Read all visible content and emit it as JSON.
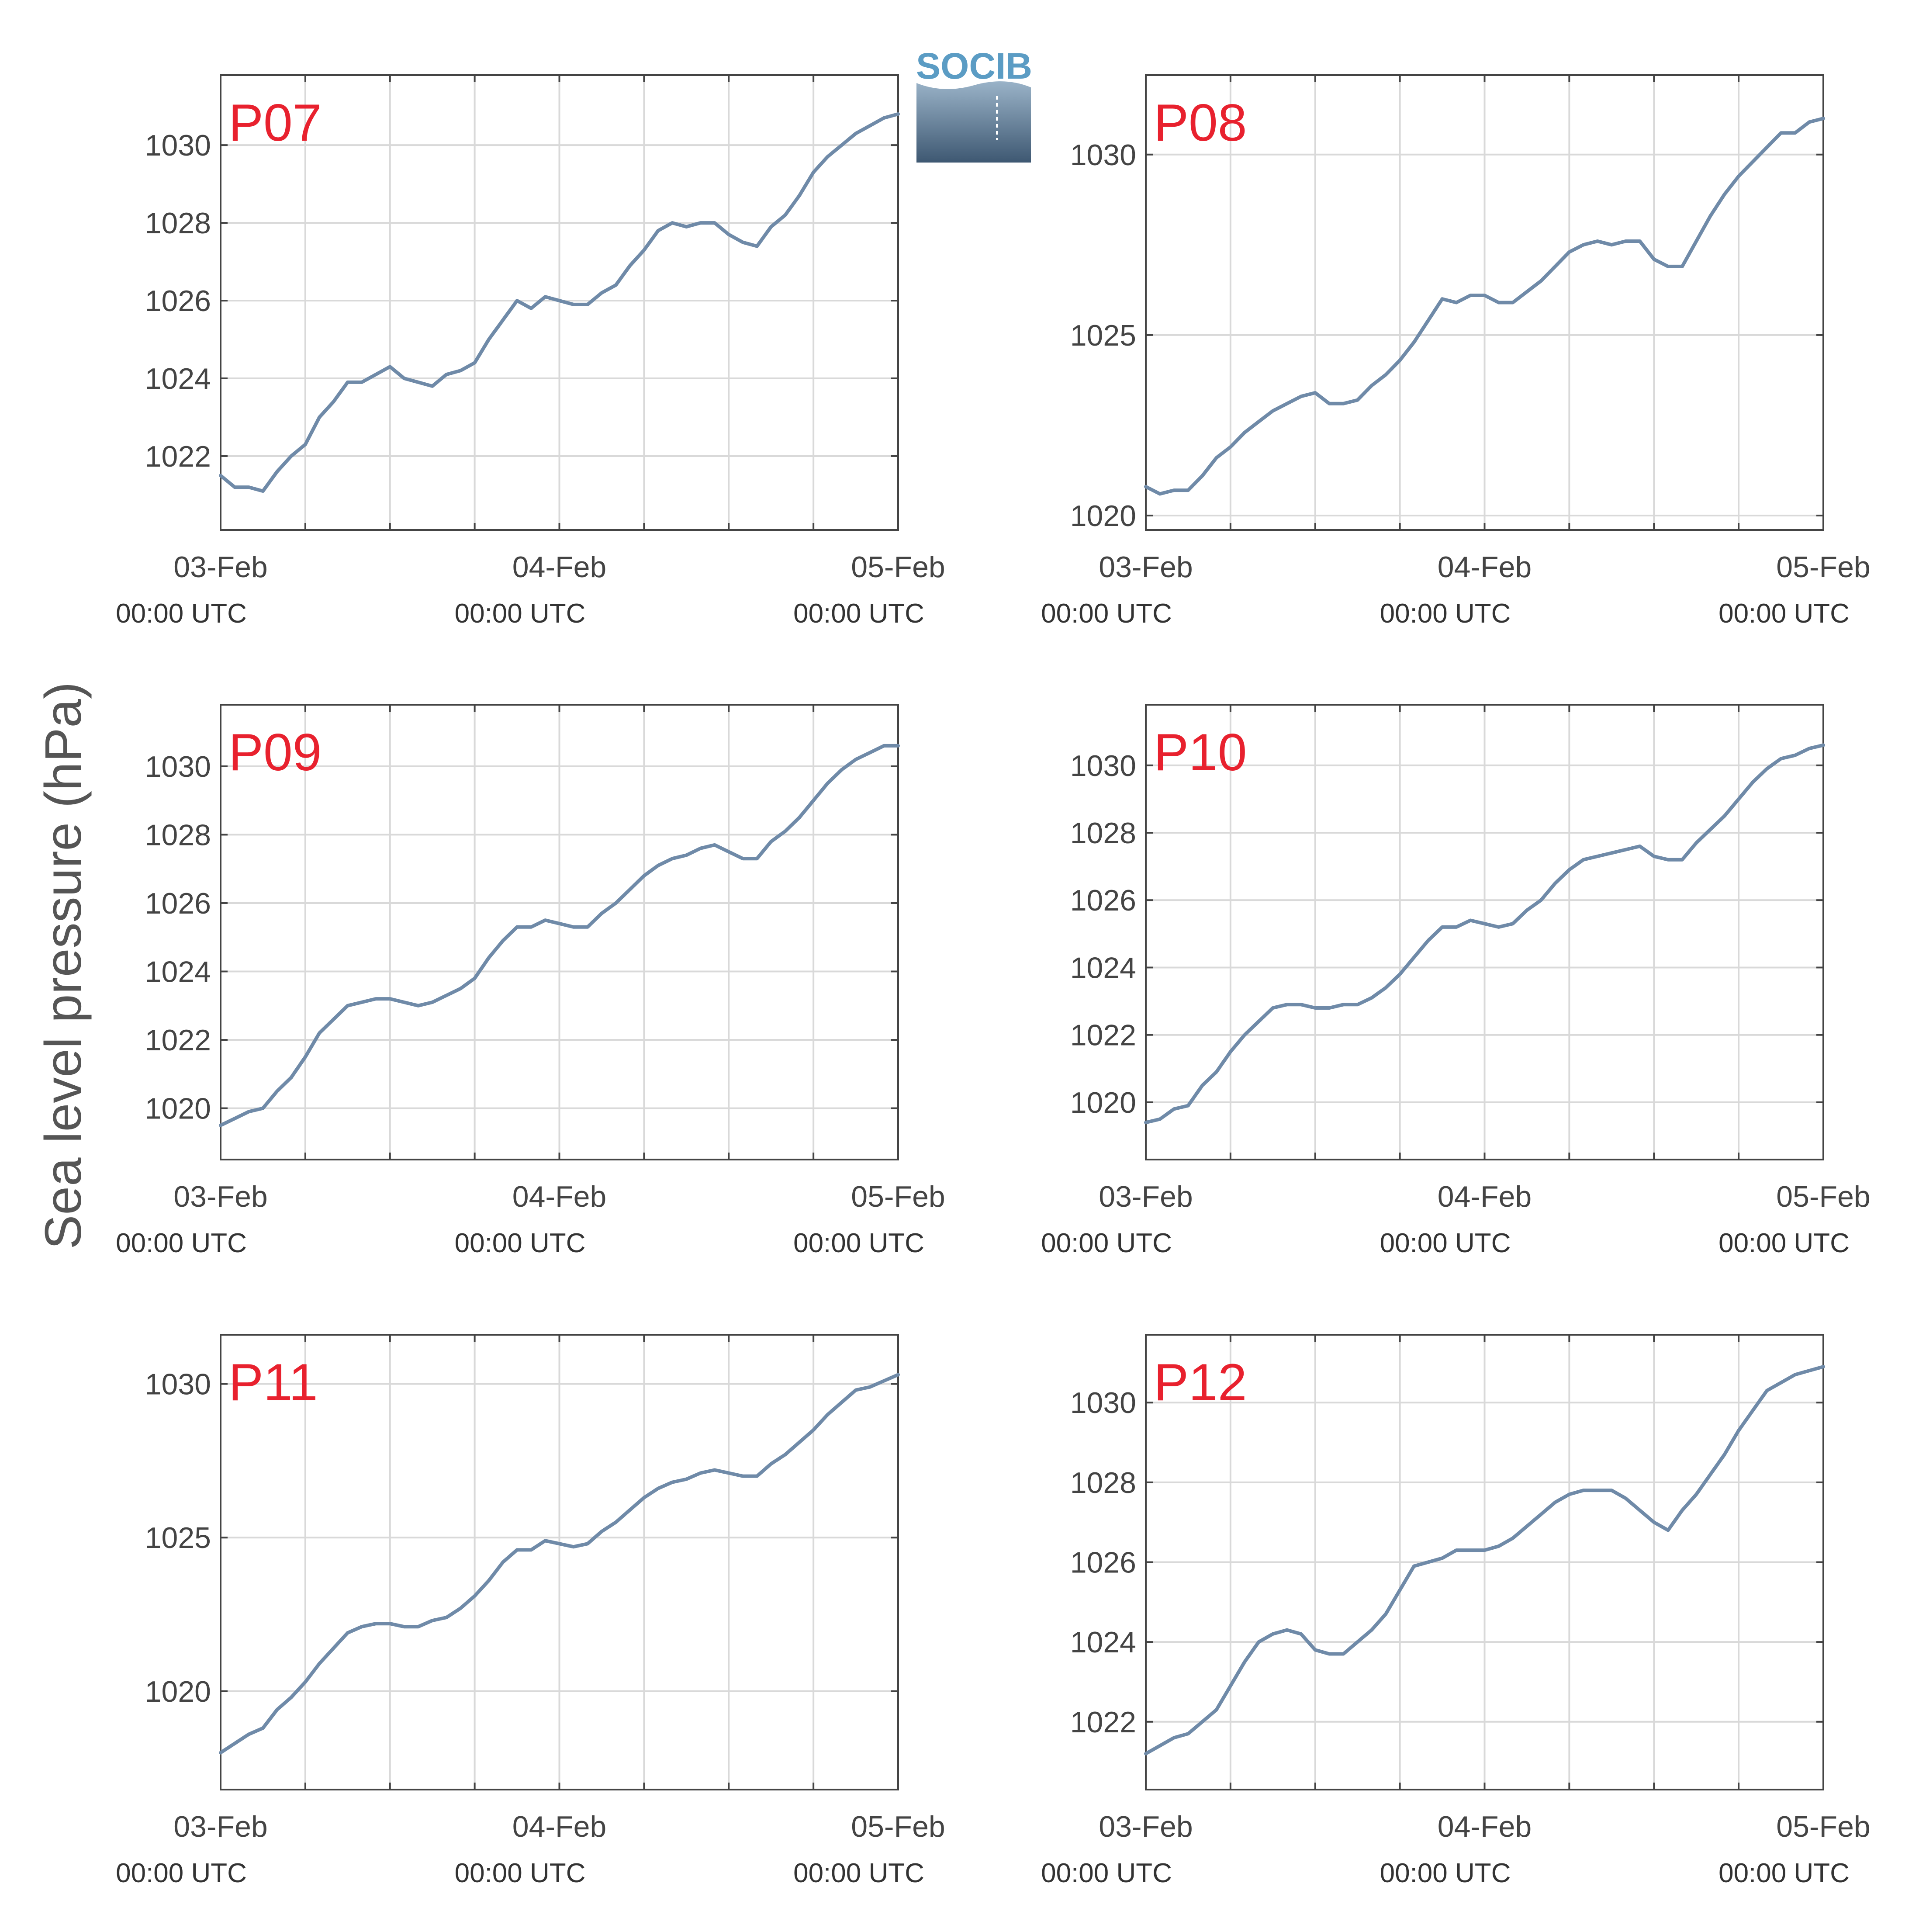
{
  "figure": {
    "ylabel": "Sea level pressure (hPa)",
    "logo_text": "SOCIB",
    "colors": {
      "line": "#6f8aa8",
      "panel_label": "#e8212e",
      "grid": "#d9d9d9",
      "axis": "#444444"
    }
  },
  "chart_data": [
    {
      "type": "line",
      "title": "P07",
      "x_ticks": [
        "03-Feb",
        "04-Feb",
        "05-Feb"
      ],
      "x_tick_sub": [
        "00:00 UTC",
        "00:00 UTC",
        "00:00 UTC"
      ],
      "x_range_hours": [
        0,
        48
      ],
      "ylim": [
        1020.1,
        1031.8
      ],
      "y_ticks": [
        1022,
        1024,
        1026,
        1028,
        1030
      ],
      "grid": true,
      "series": [
        {
          "x": [
            0,
            1,
            2,
            3,
            4,
            5,
            6,
            7,
            8,
            9,
            10,
            11,
            12,
            13,
            14,
            15,
            16,
            17,
            18,
            19,
            20,
            21,
            22,
            23,
            24,
            25,
            26,
            27,
            28,
            29,
            30,
            31,
            32,
            33,
            34,
            35,
            36,
            37,
            38,
            39,
            40,
            41,
            42,
            43,
            44,
            45,
            46,
            47,
            48
          ],
          "y": [
            1021.5,
            1021.2,
            1021.2,
            1021.1,
            1021.6,
            1022.0,
            1022.3,
            1023.0,
            1023.4,
            1023.9,
            1023.9,
            1024.1,
            1024.3,
            1024.0,
            1023.9,
            1023.8,
            1024.1,
            1024.2,
            1024.4,
            1025.0,
            1025.5,
            1026.0,
            1025.8,
            1026.1,
            1026.0,
            1025.9,
            1025.9,
            1026.2,
            1026.4,
            1026.9,
            1027.3,
            1027.8,
            1028.0,
            1027.9,
            1028.0,
            1028.0,
            1027.7,
            1027.5,
            1027.4,
            1027.9,
            1028.2,
            1028.7,
            1029.3,
            1029.7,
            1030.0,
            1030.3,
            1030.5,
            1030.7,
            1030.8
          ]
        }
      ]
    },
    {
      "type": "line",
      "title": "P08",
      "x_ticks": [
        "03-Feb",
        "04-Feb",
        "05-Feb"
      ],
      "x_tick_sub": [
        "00:00 UTC",
        "00:00 UTC",
        "00:00 UTC"
      ],
      "x_range_hours": [
        0,
        48
      ],
      "ylim": [
        1019.6,
        1032.2
      ],
      "y_ticks": [
        1020,
        1025,
        1030
      ],
      "grid": true,
      "series": [
        {
          "x": [
            0,
            1,
            2,
            3,
            4,
            5,
            6,
            7,
            8,
            9,
            10,
            11,
            12,
            13,
            14,
            15,
            16,
            17,
            18,
            19,
            20,
            21,
            22,
            23,
            24,
            25,
            26,
            27,
            28,
            29,
            30,
            31,
            32,
            33,
            34,
            35,
            36,
            37,
            38,
            39,
            40,
            41,
            42,
            43,
            44,
            45,
            46,
            47,
            48
          ],
          "y": [
            1020.8,
            1020.6,
            1020.7,
            1020.7,
            1021.1,
            1021.6,
            1021.9,
            1022.3,
            1022.6,
            1022.9,
            1023.1,
            1023.3,
            1023.4,
            1023.1,
            1023.1,
            1023.2,
            1023.6,
            1023.9,
            1024.3,
            1024.8,
            1025.4,
            1026.0,
            1025.9,
            1026.1,
            1026.1,
            1025.9,
            1025.9,
            1026.2,
            1026.5,
            1026.9,
            1027.3,
            1027.5,
            1027.6,
            1027.5,
            1027.6,
            1027.6,
            1027.1,
            1026.9,
            1026.9,
            1027.6,
            1028.3,
            1028.9,
            1029.4,
            1029.8,
            1030.2,
            1030.6,
            1030.6,
            1030.9,
            1031.0
          ]
        }
      ]
    },
    {
      "type": "line",
      "title": "P09",
      "x_ticks": [
        "03-Feb",
        "04-Feb",
        "05-Feb"
      ],
      "x_tick_sub": [
        "00:00 UTC",
        "00:00 UTC",
        "00:00 UTC"
      ],
      "x_range_hours": [
        0,
        48
      ],
      "ylim": [
        1018.5,
        1031.8
      ],
      "y_ticks": [
        1020,
        1022,
        1024,
        1026,
        1028,
        1030
      ],
      "grid": true,
      "series": [
        {
          "x": [
            0,
            1,
            2,
            3,
            4,
            5,
            6,
            7,
            8,
            9,
            10,
            11,
            12,
            13,
            14,
            15,
            16,
            17,
            18,
            19,
            20,
            21,
            22,
            23,
            24,
            25,
            26,
            27,
            28,
            29,
            30,
            31,
            32,
            33,
            34,
            35,
            36,
            37,
            38,
            39,
            40,
            41,
            42,
            43,
            44,
            45,
            46,
            47,
            48
          ],
          "y": [
            1019.5,
            1019.7,
            1019.9,
            1020.0,
            1020.5,
            1020.9,
            1021.5,
            1022.2,
            1022.6,
            1023.0,
            1023.1,
            1023.2,
            1023.2,
            1023.1,
            1023.0,
            1023.1,
            1023.3,
            1023.5,
            1023.8,
            1024.4,
            1024.9,
            1025.3,
            1025.3,
            1025.5,
            1025.4,
            1025.3,
            1025.3,
            1025.7,
            1026.0,
            1026.4,
            1026.8,
            1027.1,
            1027.3,
            1027.4,
            1027.6,
            1027.7,
            1027.5,
            1027.3,
            1027.3,
            1027.8,
            1028.1,
            1028.5,
            1029.0,
            1029.5,
            1029.9,
            1030.2,
            1030.4,
            1030.6,
            1030.6
          ]
        }
      ]
    },
    {
      "type": "line",
      "title": "P10",
      "x_ticks": [
        "03-Feb",
        "04-Feb",
        "05-Feb"
      ],
      "x_tick_sub": [
        "00:00 UTC",
        "00:00 UTC",
        "00:00 UTC"
      ],
      "x_range_hours": [
        0,
        48
      ],
      "ylim": [
        1018.3,
        1031.8
      ],
      "y_ticks": [
        1020,
        1022,
        1024,
        1026,
        1028,
        1030
      ],
      "grid": true,
      "series": [
        {
          "x": [
            0,
            1,
            2,
            3,
            4,
            5,
            6,
            7,
            8,
            9,
            10,
            11,
            12,
            13,
            14,
            15,
            16,
            17,
            18,
            19,
            20,
            21,
            22,
            23,
            24,
            25,
            26,
            27,
            28,
            29,
            30,
            31,
            32,
            33,
            34,
            35,
            36,
            37,
            38,
            39,
            40,
            41,
            42,
            43,
            44,
            45,
            46,
            47,
            48
          ],
          "y": [
            1019.4,
            1019.5,
            1019.8,
            1019.9,
            1020.5,
            1020.9,
            1021.5,
            1022.0,
            1022.4,
            1022.8,
            1022.9,
            1022.9,
            1022.8,
            1022.8,
            1022.9,
            1022.9,
            1023.1,
            1023.4,
            1023.8,
            1024.3,
            1024.8,
            1025.2,
            1025.2,
            1025.4,
            1025.3,
            1025.2,
            1025.3,
            1025.7,
            1026.0,
            1026.5,
            1026.9,
            1027.2,
            1027.3,
            1027.4,
            1027.5,
            1027.6,
            1027.3,
            1027.2,
            1027.2,
            1027.7,
            1028.1,
            1028.5,
            1029.0,
            1029.5,
            1029.9,
            1030.2,
            1030.3,
            1030.5,
            1030.6
          ]
        }
      ]
    },
    {
      "type": "line",
      "title": "P11",
      "x_ticks": [
        "03-Feb",
        "04-Feb",
        "05-Feb"
      ],
      "x_tick_sub": [
        "00:00 UTC",
        "00:00 UTC",
        "00:00 UTC"
      ],
      "x_range_hours": [
        0,
        48
      ],
      "ylim": [
        1016.8,
        1031.6
      ],
      "y_ticks": [
        1020,
        1025,
        1030
      ],
      "grid": true,
      "series": [
        {
          "x": [
            0,
            1,
            2,
            3,
            4,
            5,
            6,
            7,
            8,
            9,
            10,
            11,
            12,
            13,
            14,
            15,
            16,
            17,
            18,
            19,
            20,
            21,
            22,
            23,
            24,
            25,
            26,
            27,
            28,
            29,
            30,
            31,
            32,
            33,
            34,
            35,
            36,
            37,
            38,
            39,
            40,
            41,
            42,
            43,
            44,
            45,
            46,
            47,
            48
          ],
          "y": [
            1018.0,
            1018.3,
            1018.6,
            1018.8,
            1019.4,
            1019.8,
            1020.3,
            1020.9,
            1021.4,
            1021.9,
            1022.1,
            1022.2,
            1022.2,
            1022.1,
            1022.1,
            1022.3,
            1022.4,
            1022.7,
            1023.1,
            1023.6,
            1024.2,
            1024.6,
            1024.6,
            1024.9,
            1024.8,
            1024.7,
            1024.8,
            1025.2,
            1025.5,
            1025.9,
            1026.3,
            1026.6,
            1026.8,
            1026.9,
            1027.1,
            1027.2,
            1027.1,
            1027.0,
            1027.0,
            1027.4,
            1027.7,
            1028.1,
            1028.5,
            1029.0,
            1029.4,
            1029.8,
            1029.9,
            1030.1,
            1030.3
          ]
        }
      ]
    },
    {
      "type": "line",
      "title": "P12",
      "x_ticks": [
        "03-Feb",
        "04-Feb",
        "05-Feb"
      ],
      "x_tick_sub": [
        "00:00 UTC",
        "00:00 UTC",
        "00:00 UTC"
      ],
      "x_range_hours": [
        0,
        48
      ],
      "ylim": [
        1020.3,
        1031.7
      ],
      "y_ticks": [
        1022,
        1024,
        1026,
        1028,
        1030
      ],
      "grid": true,
      "series": [
        {
          "x": [
            0,
            1,
            2,
            3,
            4,
            5,
            6,
            7,
            8,
            9,
            10,
            11,
            12,
            13,
            14,
            15,
            16,
            17,
            18,
            19,
            20,
            21,
            22,
            23,
            24,
            25,
            26,
            27,
            28,
            29,
            30,
            31,
            32,
            33,
            34,
            35,
            36,
            37,
            38,
            39,
            40,
            41,
            42,
            43,
            44,
            45,
            46,
            47,
            48
          ],
          "y": [
            1021.2,
            1021.4,
            1021.6,
            1021.7,
            1022.0,
            1022.3,
            1022.9,
            1023.5,
            1024.0,
            1024.2,
            1024.3,
            1024.2,
            1023.8,
            1023.7,
            1023.7,
            1024.0,
            1024.3,
            1024.7,
            1025.3,
            1025.9,
            1026.0,
            1026.1,
            1026.3,
            1026.3,
            1026.3,
            1026.4,
            1026.6,
            1026.9,
            1027.2,
            1027.5,
            1027.7,
            1027.8,
            1027.8,
            1027.8,
            1027.6,
            1027.3,
            1027.0,
            1026.8,
            1027.3,
            1027.7,
            1028.2,
            1028.7,
            1029.3,
            1029.8,
            1030.3,
            1030.5,
            1030.7,
            1030.8,
            1030.9
          ]
        }
      ]
    }
  ]
}
